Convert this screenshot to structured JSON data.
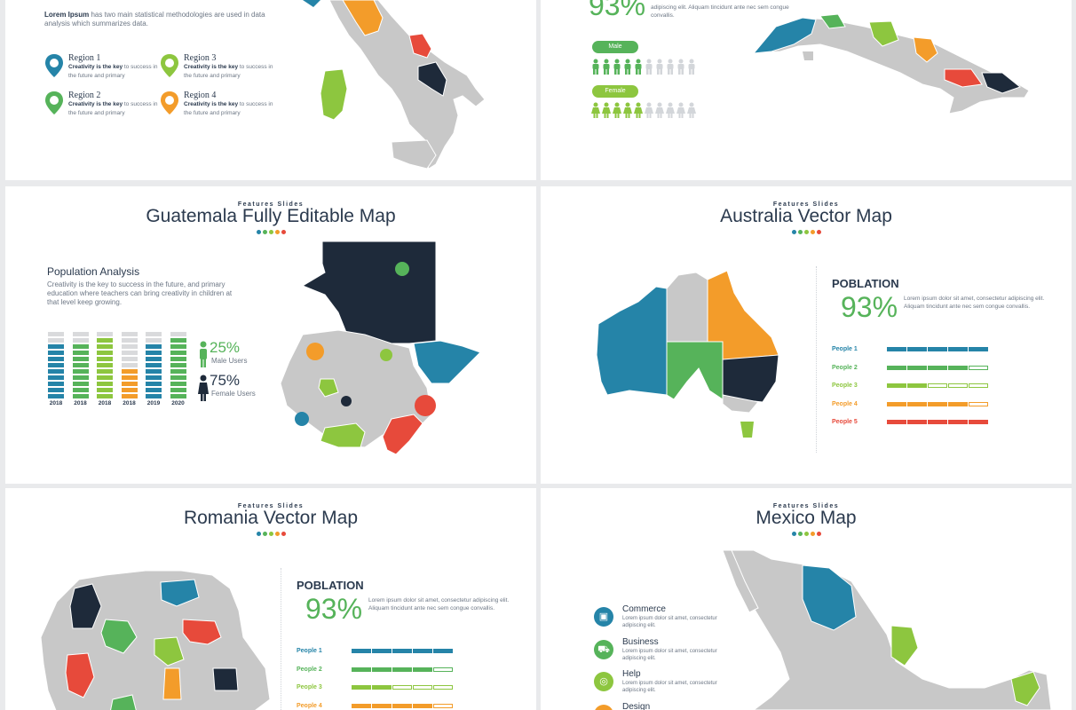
{
  "colors": {
    "teal": "#2584a8",
    "green": "#56b35a",
    "lime": "#8dc63f",
    "orange": "#f39c2a",
    "red": "#e74a3b",
    "navy": "#1e2a3a",
    "gray": "#c8c8c8"
  },
  "italy": {
    "intro_bold": "Lorem Ipsum",
    "intro_rest": "has two main statistical methodologies are used in data analysis which summarizes data.",
    "regions": [
      {
        "name": "Region 1",
        "text_bold": "Creativity is the key",
        "text_rest": "to success in the future and primary"
      },
      {
        "name": "Region 3",
        "text_bold": "Creativity is the key",
        "text_rest": "to success in the future and primary"
      },
      {
        "name": "Region 2",
        "text_bold": "Creativity is the key",
        "text_rest": "to success in the future and primary"
      },
      {
        "name": "Region 4",
        "text_bold": "Creativity is the key",
        "text_rest": "to success in the future and primary"
      }
    ]
  },
  "cuba": {
    "percent": "93%",
    "text": "adipiscing elit. Aliquam tincidunt ante nec sem congue convallis.",
    "male_label": "Male",
    "female_label": "Female",
    "male_highlighted": 5,
    "female_highlighted": 5,
    "people_total": 10
  },
  "guatemala": {
    "kicker": "Features Slides",
    "title": "Guatemala Fully Editable Map",
    "heading": "Population Analysis",
    "text": "Creativity is the key to success in the future, and primary education where teachers can bring creativity in children at that level keep growing.",
    "bars": [
      {
        "year": "2018",
        "color": "teal",
        "filled": 9
      },
      {
        "year": "2018",
        "color": "green",
        "filled": 9
      },
      {
        "year": "2018",
        "color": "lime",
        "filled": 10
      },
      {
        "year": "2018",
        "color": "orange",
        "filled": 5
      },
      {
        "year": "2019",
        "color": "teal",
        "filled": 9
      },
      {
        "year": "2020",
        "color": "green",
        "filled": 10
      }
    ],
    "male_pct": "25%",
    "male_label": "Male Users",
    "female_pct": "75%",
    "female_label": "Female Users"
  },
  "australia": {
    "kicker": "Features Slides",
    "title": "Australia Vector Map",
    "heading": "POBLATION",
    "percent": "93%",
    "text": "Lorem ipsum dolor sit amet, consectetur adipiscing elit. Aliquam tincidunt ante nec sem congue convallis.",
    "people": [
      {
        "label": "People 1",
        "color": "teal",
        "filled": 5
      },
      {
        "label": "People 2",
        "color": "green",
        "filled": 4
      },
      {
        "label": "People 3",
        "color": "lime",
        "filled": 2
      },
      {
        "label": "People 4",
        "color": "orange",
        "filled": 4
      },
      {
        "label": "People 5",
        "color": "red",
        "filled": 5
      }
    ]
  },
  "romania": {
    "kicker": "Features Slides",
    "title": "Romania Vector Map",
    "heading": "POBLATION",
    "percent": "93%",
    "text": "Lorem ipsum dolor sit amet, consectetur adipiscing elit. Aliquam tincidunt ante nec sem congue convallis.",
    "people": [
      {
        "label": "People 1",
        "color": "teal",
        "filled": 5
      },
      {
        "label": "People 2",
        "color": "green",
        "filled": 4
      },
      {
        "label": "People 3",
        "color": "lime",
        "filled": 2
      },
      {
        "label": "People 4",
        "color": "orange",
        "filled": 4
      }
    ]
  },
  "mexico": {
    "kicker": "Features Slides",
    "title": "Mexico Map",
    "items": [
      {
        "title": "Commerce",
        "text": "Lorem ipsum dolor sit amet, consectetur adipiscing elit.",
        "icon": "camera-icon",
        "color": "teal"
      },
      {
        "title": "Business",
        "text": "Lorem ipsum dolor sit amet, consectetur adipiscing elit.",
        "icon": "car-icon",
        "color": "green"
      },
      {
        "title": "Help",
        "text": "Lorem ipsum dolor sit amet, consectetur adipiscing elit.",
        "icon": "lifebuoy-icon",
        "color": "lime"
      },
      {
        "title": "Design",
        "text": "",
        "icon": "design-icon",
        "color": "orange"
      }
    ]
  }
}
